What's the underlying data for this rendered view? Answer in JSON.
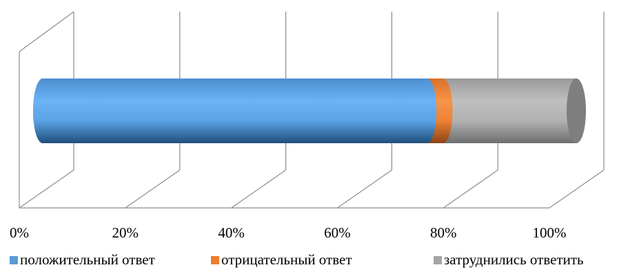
{
  "chart_data": {
    "type": "bar",
    "orientation": "horizontal",
    "stacked": "percent",
    "style": "3d-cylinder",
    "grid": true,
    "legend_position": "bottom",
    "xlim": [
      0,
      100
    ],
    "x_ticks": [
      "0%",
      "20%",
      "40%",
      "60%",
      "80%",
      "100%"
    ],
    "categories": [
      ""
    ],
    "series": [
      {
        "name": "положительный ответ",
        "values": [
          72
        ],
        "color": "#5b9bd5"
      },
      {
        "name": "отрицательный ответ",
        "values": [
          3
        ],
        "color": "#ed7d31"
      },
      {
        "name": "затруднились ответить",
        "values": [
          25
        ],
        "color": "#a5a5a5"
      }
    ]
  }
}
